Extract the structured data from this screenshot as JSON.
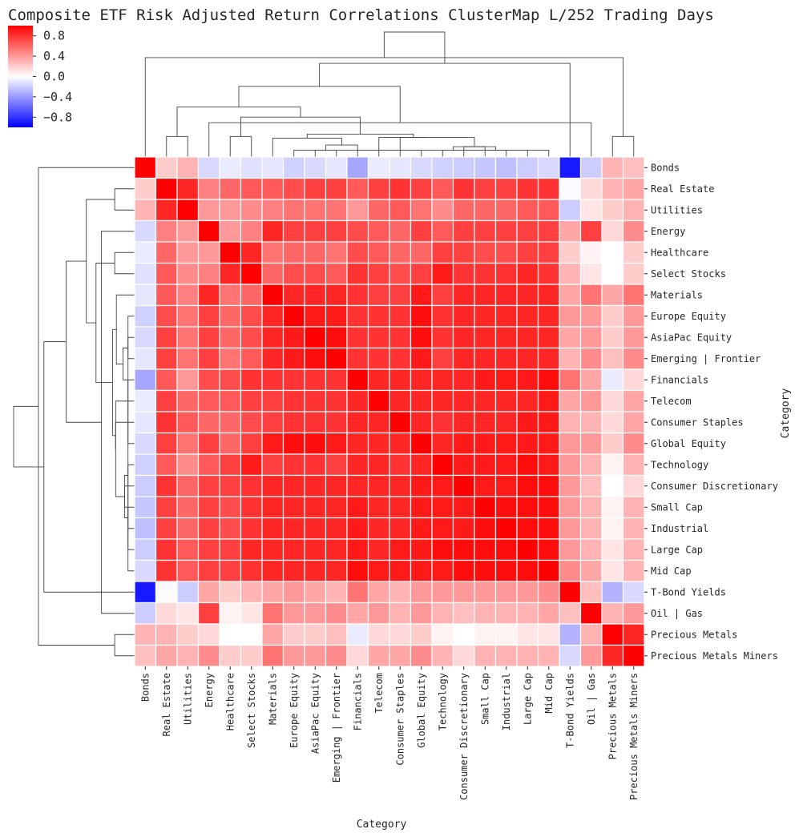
{
  "chart_data": {
    "type": "heatmap",
    "title": "Composite ETF Risk Adjusted Return Correlations ClusterMap L/252 Trading Days",
    "xlabel": "Category",
    "ylabel": "Category",
    "categories": [
      "Bonds",
      "Real Estate",
      "Utilities",
      "Energy",
      "Healthcare",
      "Select Stocks",
      "Materials",
      "Europe Equity",
      "AsiaPac Equity",
      "Emerging | Frontier",
      "Financials",
      "Telecom",
      "Consumer Staples",
      "Global Equity",
      "Technology",
      "Consumer Discretionary",
      "Small Cap",
      "Industrial",
      "Large Cap",
      "Mid Cap",
      "T-Bond Yields",
      "Oil | Gas",
      "Precious Metals",
      "Precious Metals Miners"
    ],
    "values": [
      [
        1.0,
        0.2,
        0.3,
        -0.15,
        -0.08,
        -0.12,
        -0.1,
        -0.18,
        -0.15,
        -0.1,
        -0.35,
        -0.08,
        -0.1,
        -0.15,
        -0.18,
        -0.2,
        -0.22,
        -0.25,
        -0.2,
        -0.15,
        -0.9,
        -0.2,
        0.3,
        0.25
      ],
      [
        0.2,
        1.0,
        0.85,
        0.5,
        0.6,
        0.65,
        0.65,
        0.7,
        0.75,
        0.75,
        0.65,
        0.75,
        0.8,
        0.75,
        0.65,
        0.8,
        0.75,
        0.75,
        0.8,
        0.8,
        -0.02,
        0.15,
        0.3,
        0.35
      ],
      [
        0.3,
        0.85,
        1.0,
        0.4,
        0.4,
        0.45,
        0.5,
        0.55,
        0.55,
        0.55,
        0.4,
        0.6,
        0.65,
        0.55,
        0.45,
        0.6,
        0.6,
        0.6,
        0.65,
        0.65,
        -0.2,
        0.1,
        0.2,
        0.3
      ],
      [
        -0.15,
        0.5,
        0.4,
        1.0,
        0.4,
        0.5,
        0.85,
        0.75,
        0.75,
        0.75,
        0.7,
        0.65,
        0.6,
        0.75,
        0.65,
        0.75,
        0.75,
        0.75,
        0.75,
        0.75,
        0.35,
        0.75,
        0.15,
        0.45
      ],
      [
        -0.08,
        0.6,
        0.4,
        0.4,
        1.0,
        0.85,
        0.55,
        0.6,
        0.6,
        0.55,
        0.7,
        0.65,
        0.6,
        0.6,
        0.75,
        0.75,
        0.7,
        0.7,
        0.75,
        0.75,
        0.2,
        0.05,
        0.0,
        0.2
      ],
      [
        -0.12,
        0.65,
        0.45,
        0.5,
        0.85,
        1.0,
        0.6,
        0.7,
        0.7,
        0.65,
        0.8,
        0.75,
        0.7,
        0.75,
        0.9,
        0.8,
        0.8,
        0.8,
        0.85,
        0.8,
        0.3,
        0.1,
        0.0,
        0.2
      ],
      [
        -0.1,
        0.65,
        0.5,
        0.85,
        0.55,
        0.6,
        1.0,
        0.85,
        0.85,
        0.85,
        0.8,
        0.75,
        0.75,
        0.9,
        0.75,
        0.85,
        0.85,
        0.85,
        0.85,
        0.85,
        0.35,
        0.55,
        0.35,
        0.55
      ],
      [
        -0.18,
        0.7,
        0.55,
        0.75,
        0.6,
        0.7,
        0.85,
        1.0,
        0.9,
        0.9,
        0.8,
        0.8,
        0.8,
        0.95,
        0.8,
        0.85,
        0.85,
        0.85,
        0.85,
        0.85,
        0.4,
        0.4,
        0.2,
        0.4
      ],
      [
        -0.15,
        0.75,
        0.55,
        0.75,
        0.6,
        0.7,
        0.85,
        0.9,
        1.0,
        0.95,
        0.8,
        0.8,
        0.8,
        0.95,
        0.8,
        0.85,
        0.85,
        0.85,
        0.85,
        0.85,
        0.35,
        0.4,
        0.2,
        0.4
      ],
      [
        -0.1,
        0.75,
        0.55,
        0.75,
        0.55,
        0.65,
        0.85,
        0.9,
        0.95,
        1.0,
        0.8,
        0.8,
        0.8,
        0.9,
        0.75,
        0.85,
        0.85,
        0.85,
        0.85,
        0.85,
        0.3,
        0.45,
        0.25,
        0.45
      ],
      [
        -0.35,
        0.65,
        0.4,
        0.7,
        0.7,
        0.8,
        0.8,
        0.8,
        0.8,
        0.8,
        1.0,
        0.85,
        0.85,
        0.85,
        0.85,
        0.85,
        0.9,
        0.9,
        0.9,
        0.95,
        0.55,
        0.35,
        -0.08,
        0.15
      ],
      [
        -0.08,
        0.75,
        0.6,
        0.65,
        0.65,
        0.75,
        0.75,
        0.8,
        0.8,
        0.8,
        0.85,
        1.0,
        0.85,
        0.85,
        0.85,
        0.85,
        0.85,
        0.85,
        0.85,
        0.9,
        0.35,
        0.4,
        0.15,
        0.35
      ],
      [
        -0.1,
        0.8,
        0.65,
        0.6,
        0.6,
        0.7,
        0.75,
        0.8,
        0.8,
        0.8,
        0.85,
        0.85,
        1.0,
        0.85,
        0.8,
        0.85,
        0.85,
        0.85,
        0.9,
        0.9,
        0.3,
        0.3,
        0.15,
        0.35
      ],
      [
        -0.15,
        0.75,
        0.55,
        0.75,
        0.6,
        0.75,
        0.9,
        0.95,
        0.95,
        0.9,
        0.85,
        0.85,
        0.85,
        1.0,
        0.85,
        0.9,
        0.9,
        0.9,
        0.9,
        0.9,
        0.4,
        0.4,
        0.2,
        0.45
      ],
      [
        -0.18,
        0.65,
        0.45,
        0.65,
        0.75,
        0.9,
        0.75,
        0.8,
        0.8,
        0.75,
        0.85,
        0.85,
        0.8,
        0.85,
        1.0,
        0.9,
        0.9,
        0.9,
        0.95,
        0.9,
        0.4,
        0.3,
        0.05,
        0.3
      ],
      [
        -0.2,
        0.8,
        0.6,
        0.75,
        0.75,
        0.8,
        0.85,
        0.85,
        0.85,
        0.85,
        0.85,
        0.85,
        0.85,
        0.9,
        0.9,
        1.0,
        0.9,
        0.9,
        0.95,
        0.95,
        0.4,
        0.25,
        0.0,
        0.15
      ],
      [
        -0.22,
        0.75,
        0.6,
        0.75,
        0.7,
        0.8,
        0.85,
        0.85,
        0.85,
        0.85,
        0.9,
        0.85,
        0.85,
        0.9,
        0.9,
        0.9,
        1.0,
        0.95,
        0.95,
        0.95,
        0.4,
        0.3,
        0.05,
        0.3
      ],
      [
        -0.25,
        0.75,
        0.6,
        0.75,
        0.7,
        0.8,
        0.85,
        0.85,
        0.85,
        0.85,
        0.9,
        0.85,
        0.85,
        0.9,
        0.9,
        0.9,
        0.95,
        1.0,
        0.95,
        0.95,
        0.4,
        0.3,
        0.05,
        0.3
      ],
      [
        -0.2,
        0.8,
        0.65,
        0.75,
        0.75,
        0.85,
        0.85,
        0.85,
        0.85,
        0.85,
        0.9,
        0.85,
        0.9,
        0.9,
        0.95,
        0.95,
        0.95,
        0.95,
        1.0,
        0.95,
        0.4,
        0.3,
        0.1,
        0.3
      ],
      [
        -0.15,
        0.8,
        0.65,
        0.75,
        0.75,
        0.8,
        0.85,
        0.85,
        0.85,
        0.85,
        0.95,
        0.9,
        0.9,
        0.9,
        0.9,
        0.95,
        0.95,
        0.95,
        0.95,
        1.0,
        0.45,
        0.35,
        0.1,
        0.3
      ],
      [
        -0.9,
        -0.02,
        -0.2,
        0.35,
        0.2,
        0.3,
        0.35,
        0.4,
        0.35,
        0.3,
        0.55,
        0.35,
        0.3,
        0.4,
        0.4,
        0.4,
        0.4,
        0.4,
        0.4,
        0.45,
        1.0,
        0.25,
        -0.3,
        -0.15
      ],
      [
        -0.2,
        0.15,
        0.1,
        0.75,
        0.05,
        0.1,
        0.55,
        0.4,
        0.4,
        0.45,
        0.35,
        0.4,
        0.3,
        0.4,
        0.3,
        0.25,
        0.3,
        0.3,
        0.3,
        0.35,
        0.25,
        1.0,
        0.3,
        0.4
      ],
      [
        0.3,
        0.3,
        0.2,
        0.15,
        0.0,
        0.0,
        0.35,
        0.2,
        0.2,
        0.25,
        -0.08,
        0.15,
        0.15,
        0.2,
        0.05,
        0.0,
        0.05,
        0.05,
        0.1,
        0.1,
        -0.3,
        0.3,
        1.0,
        0.85
      ],
      [
        0.25,
        0.35,
        0.3,
        0.45,
        0.2,
        0.2,
        0.55,
        0.4,
        0.4,
        0.45,
        0.15,
        0.35,
        0.35,
        0.45,
        0.3,
        0.15,
        0.3,
        0.3,
        0.3,
        0.3,
        -0.15,
        0.4,
        0.85,
        1.0
      ]
    ],
    "colormap": "bwr",
    "vmin": -1.0,
    "vmax": 1.0,
    "colorbar_ticks": [
      "0.8",
      "0.4",
      "0.0",
      "-0.4",
      "-0.8"
    ],
    "colors": {
      "low": "#0000ff",
      "mid": "#ffffff",
      "high": "#ff0000"
    }
  }
}
